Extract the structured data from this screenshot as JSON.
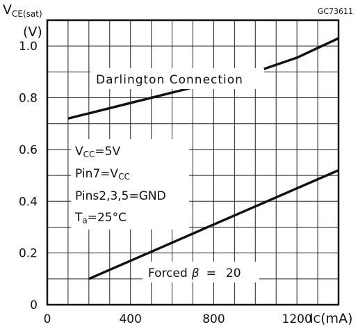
{
  "chart_data": {
    "type": "line",
    "code": "GC73611",
    "ylabel": {
      "main": "V",
      "sub": "CE(sat)",
      "unit": "(V)"
    },
    "xlabel": {
      "main": "I",
      "sub": "C",
      "unit": "(mA)"
    },
    "xlim": [
      0,
      1400
    ],
    "ylim": [
      0,
      1.1
    ],
    "grid": true,
    "x_gridlines": [
      0,
      100,
      200,
      300,
      400,
      500,
      600,
      700,
      800,
      900,
      1000,
      1100,
      1200,
      1300,
      1400
    ],
    "y_gridlines": [
      0,
      0.1,
      0.2,
      0.3,
      0.4,
      0.5,
      0.6,
      0.7,
      0.8,
      0.9,
      1.0,
      1.1
    ],
    "xticks": [
      0,
      400,
      800,
      1200
    ],
    "yticks": [
      0,
      0.2,
      0.4,
      0.6,
      0.8,
      1.0
    ],
    "xtick_labels": [
      "0",
      "400",
      "800",
      "1200"
    ],
    "ytick_labels": [
      "0",
      "0.2",
      "0.4",
      "0.6",
      "0.8",
      "1.0"
    ],
    "series": [
      {
        "name": "Darlington Connection",
        "x": [
          100,
          200,
          400,
          600,
          800,
          1000,
          1200,
          1400
        ],
        "y": [
          0.72,
          0.74,
          0.78,
          0.82,
          0.86,
          0.9,
          0.955,
          1.03
        ]
      },
      {
        "name": "Forced β = 20",
        "x": [
          200,
          400,
          600,
          800,
          1000,
          1200,
          1400
        ],
        "y": [
          0.1,
          0.17,
          0.24,
          0.31,
          0.38,
          0.45,
          0.52
        ]
      }
    ],
    "series_label_parts": {
      "forced": "Forced",
      "beta": "β",
      "eq": "=",
      "ratio": "20"
    },
    "conditions": [
      {
        "main": "V",
        "sub": "CC",
        "rest": "=5V"
      },
      {
        "main": "Pin7=V",
        "sub": "CC",
        "rest": ""
      },
      {
        "main": "Pins2,3,5=GND",
        "sub": "",
        "rest": ""
      },
      {
        "main": "T",
        "sub": "a",
        "rest": "=25°C"
      }
    ]
  }
}
